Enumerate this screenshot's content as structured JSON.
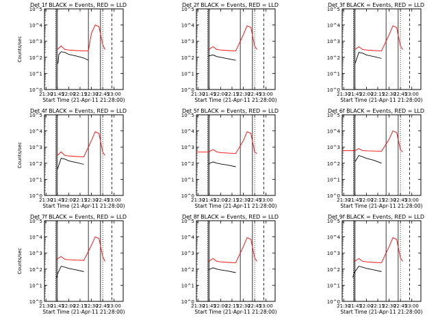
{
  "figure": {
    "subtitle": "Start Time (21-Apr-11 21:28:00)",
    "ylabel": "Counts/sec",
    "x_ticks": [
      "21:30",
      "21:45",
      "22:00",
      "22:15",
      "22:30",
      "22:45",
      "23:00"
    ],
    "y_ticks": [
      "10^0",
      "10^1",
      "10^2",
      "10^3",
      "10^4",
      "10^5"
    ],
    "colors": {
      "events": "#000000",
      "lld": "#ff0000",
      "axes": "#000000"
    },
    "vlines_minutes": {
      "dotted": [
        15,
        77
      ],
      "solid_early": [
        15.5,
        17
      ],
      "solid_late": [
        58,
        74
      ],
      "dashed": [
        89
      ]
    }
  },
  "chart_data": [
    {
      "type": "line",
      "title": "Det  1f BLACK = Events, RED = LLD",
      "xlabel": "Start Time (21-Apr-11 21:28:00)",
      "ylabel": "Counts/sec",
      "x_axis": "time",
      "y_scale": "log",
      "xlim": [
        "21:28",
        "23:12"
      ],
      "ylim": [
        1,
        100000
      ],
      "series": [
        {
          "name": "Events",
          "color": "#000000",
          "points": [
            [
              "21:45",
              40
            ],
            [
              "21:46",
              45
            ],
            [
              "21:47",
              150
            ],
            [
              "21:50",
              220
            ],
            [
              "21:55",
              200
            ],
            [
              "22:00",
              150
            ],
            [
              "22:10",
              120
            ],
            [
              "22:20",
              90
            ],
            [
              "22:26",
              65
            ]
          ]
        },
        {
          "name": "LLD",
          "color": "#ff0000",
          "points": [
            [
              "21:45",
              300
            ],
            [
              "21:50",
              500
            ],
            [
              "21:55",
              300
            ],
            [
              "22:00",
              280
            ],
            [
              "22:10",
              260
            ],
            [
              "22:20",
              250
            ],
            [
              "22:26",
              250
            ],
            [
              "22:30",
              3000
            ],
            [
              "22:35",
              10000
            ],
            [
              "22:40",
              8000
            ],
            [
              "22:45",
              600
            ],
            [
              "22:48",
              300
            ]
          ]
        }
      ]
    },
    {
      "type": "line",
      "title": "Det  2f BLACK = Events, RED = LLD",
      "xlabel": "Start Time (21-Apr-11 21:28:00)",
      "ylabel": "",
      "x_axis": "time",
      "y_scale": "log",
      "xlim": [
        "21:28",
        "23:12"
      ],
      "ylim": [
        1,
        100000
      ],
      "series": [
        {
          "name": "Events",
          "color": "#000000",
          "points": [
            [
              "21:44",
              120
            ],
            [
              "21:50",
              140
            ],
            [
              "21:55",
              110
            ],
            [
              "22:00",
              100
            ],
            [
              "22:10",
              80
            ],
            [
              "22:20",
              65
            ]
          ]
        },
        {
          "name": "LLD",
          "color": "#ff0000",
          "points": [
            [
              "21:44",
              300
            ],
            [
              "21:50",
              450
            ],
            [
              "21:55",
              300
            ],
            [
              "22:00",
              280
            ],
            [
              "22:10",
              260
            ],
            [
              "22:20",
              250
            ],
            [
              "22:30",
              2500
            ],
            [
              "22:35",
              9000
            ],
            [
              "22:40",
              7000
            ],
            [
              "22:45",
              500
            ],
            [
              "22:48",
              300
            ]
          ]
        }
      ]
    },
    {
      "type": "line",
      "title": "Det  3f BLACK = Events, RED = LLD",
      "xlabel": "Start Time (21-Apr-11 21:28:00)",
      "ylabel": "Counts/sec",
      "x_axis": "time",
      "y_scale": "log",
      "xlim": [
        "21:28",
        "23:12"
      ],
      "ylim": [
        1,
        100000
      ],
      "series": [
        {
          "name": "Events",
          "color": "#000000",
          "points": [
            [
              "21:45",
              40
            ],
            [
              "21:50",
              200
            ],
            [
              "21:55",
              180
            ],
            [
              "22:00",
              140
            ],
            [
              "22:10",
              110
            ],
            [
              "22:20",
              85
            ]
          ]
        },
        {
          "name": "LLD",
          "color": "#ff0000",
          "points": [
            [
              "21:45",
              300
            ],
            [
              "21:50",
              450
            ],
            [
              "21:55",
              300
            ],
            [
              "22:00",
              280
            ],
            [
              "22:10",
              260
            ],
            [
              "22:20",
              250
            ],
            [
              "22:30",
              2500
            ],
            [
              "22:35",
              9000
            ],
            [
              "22:40",
              7000
            ],
            [
              "22:45",
              500
            ],
            [
              "22:48",
              300
            ]
          ]
        }
      ]
    },
    {
      "type": "line",
      "title": "Det  4f BLACK = Events, RED = LLD",
      "xlabel": "Start Time (21-Apr-11 21:28:00)",
      "ylabel": "Counts/sec",
      "x_axis": "time",
      "y_scale": "log",
      "xlim": [
        "21:28",
        "23:12"
      ],
      "ylim": [
        1,
        100000
      ],
      "series": [
        {
          "name": "Events",
          "color": "#000000",
          "points": [
            [
              "21:45",
              40
            ],
            [
              "21:50",
              200
            ],
            [
              "21:55",
              180
            ],
            [
              "22:00",
              140
            ],
            [
              "22:10",
              110
            ],
            [
              "22:20",
              85
            ]
          ]
        },
        {
          "name": "LLD",
          "color": "#ff0000",
          "points": [
            [
              "21:45",
              300
            ],
            [
              "21:50",
              500
            ],
            [
              "21:55",
              300
            ],
            [
              "22:00",
              280
            ],
            [
              "22:10",
              260
            ],
            [
              "22:20",
              250
            ],
            [
              "22:30",
              2500
            ],
            [
              "22:35",
              9000
            ],
            [
              "22:40",
              7000
            ],
            [
              "22:45",
              500
            ],
            [
              "22:48",
              300
            ]
          ]
        }
      ]
    },
    {
      "type": "line",
      "title": "Det  5f BLACK = Events, RED = LLD",
      "xlabel": "Start Time (21-Apr-11 21:28:00)",
      "ylabel": "Counts/sec",
      "x_axis": "time",
      "y_scale": "log",
      "xlim": [
        "21:28",
        "23:12"
      ],
      "ylim": [
        1,
        100000
      ],
      "series": [
        {
          "name": "Events",
          "color": "#000000",
          "points": [
            [
              "21:44",
              90
            ],
            [
              "21:50",
              120
            ],
            [
              "21:55",
              100
            ],
            [
              "22:00",
              90
            ],
            [
              "22:10",
              75
            ],
            [
              "22:20",
              60
            ]
          ]
        },
        {
          "name": "LLD",
          "color": "#ff0000",
          "points": [
            [
              "21:28",
              500
            ],
            [
              "21:44",
              500
            ],
            [
              "21:50",
              700
            ],
            [
              "21:55",
              500
            ],
            [
              "22:00",
              450
            ],
            [
              "22:10",
              420
            ],
            [
              "22:20",
              400
            ],
            [
              "22:30",
              2500
            ],
            [
              "22:35",
              9000
            ],
            [
              "22:40",
              7000
            ],
            [
              "22:45",
              500
            ],
            [
              "22:48",
              400
            ]
          ]
        }
      ]
    },
    {
      "type": "line",
      "title": "Det  6f BLACK = Events, RED = LLD",
      "xlabel": "Start Time (21-Apr-11 21:28:00)",
      "ylabel": "Counts/sec",
      "x_axis": "time",
      "y_scale": "log",
      "xlim": [
        "21:28",
        "23:12"
      ],
      "ylim": [
        1,
        100000
      ],
      "series": [
        {
          "name": "Events",
          "color": "#000000",
          "points": [
            [
              "21:45",
              120
            ],
            [
              "21:50",
              300
            ],
            [
              "21:55",
              250
            ],
            [
              "22:00",
              200
            ],
            [
              "22:10",
              150
            ],
            [
              "22:20",
              100
            ]
          ]
        },
        {
          "name": "LLD",
          "color": "#ff0000",
          "points": [
            [
              "21:28",
              600
            ],
            [
              "21:45",
              600
            ],
            [
              "21:50",
              800
            ],
            [
              "21:55",
              600
            ],
            [
              "22:00",
              580
            ],
            [
              "22:10",
              560
            ],
            [
              "22:20",
              550
            ],
            [
              "22:30",
              3000
            ],
            [
              "22:35",
              10000
            ],
            [
              "22:40",
              8000
            ],
            [
              "22:45",
              700
            ],
            [
              "22:48",
              500
            ]
          ]
        }
      ]
    },
    {
      "type": "line",
      "title": "Det  7f BLACK = Events, RED = LLD",
      "xlabel": "Start Time (21-Apr-11 21:28:00)",
      "ylabel": "Counts/sec",
      "x_axis": "time",
      "y_scale": "log",
      "xlim": [
        "21:28",
        "23:12"
      ],
      "ylim": [
        1,
        100000
      ],
      "series": [
        {
          "name": "Events",
          "color": "#000000",
          "points": [
            [
              "21:44",
              30
            ],
            [
              "21:46",
              60
            ],
            [
              "21:50",
              150
            ],
            [
              "21:55",
              130
            ],
            [
              "22:00",
              110
            ],
            [
              "22:10",
              90
            ],
            [
              "22:20",
              70
            ]
          ]
        },
        {
          "name": "LLD",
          "color": "#ff0000",
          "points": [
            [
              "21:44",
              400
            ],
            [
              "21:50",
              600
            ],
            [
              "21:55",
              400
            ],
            [
              "22:00",
              380
            ],
            [
              "22:10",
              360
            ],
            [
              "22:20",
              350
            ],
            [
              "22:30",
              3000
            ],
            [
              "22:35",
              10000
            ],
            [
              "22:40",
              8000
            ],
            [
              "22:45",
              600
            ],
            [
              "22:48",
              300
            ]
          ]
        }
      ]
    },
    {
      "type": "line",
      "title": "Det  8f BLACK = Events, RED = LLD",
      "xlabel": "Start Time (21-Apr-11 21:28:00)",
      "ylabel": "Counts/sec",
      "x_axis": "time",
      "y_scale": "log",
      "xlim": [
        "21:28",
        "23:12"
      ],
      "ylim": [
        1,
        100000
      ],
      "series": [
        {
          "name": "Events",
          "color": "#000000",
          "points": [
            [
              "21:44",
              90
            ],
            [
              "21:50",
              120
            ],
            [
              "21:55",
              100
            ],
            [
              "22:00",
              90
            ],
            [
              "22:10",
              75
            ],
            [
              "22:20",
              60
            ]
          ]
        },
        {
          "name": "LLD",
          "color": "#ff0000",
          "points": [
            [
              "21:44",
              300
            ],
            [
              "21:50",
              450
            ],
            [
              "21:55",
              300
            ],
            [
              "22:00",
              280
            ],
            [
              "22:10",
              260
            ],
            [
              "22:20",
              250
            ],
            [
              "22:30",
              2500
            ],
            [
              "22:35",
              9000
            ],
            [
              "22:40",
              7000
            ],
            [
              "22:45",
              500
            ],
            [
              "22:48",
              300
            ]
          ]
        }
      ]
    },
    {
      "type": "line",
      "title": "Det  9f BLACK = Events, RED = LLD",
      "xlabel": "Start Time (21-Apr-11 21:28:00)",
      "ylabel": "Counts/sec",
      "x_axis": "time",
      "y_scale": "log",
      "xlim": [
        "21:28",
        "23:12"
      ],
      "ylim": [
        1,
        100000
      ],
      "series": [
        {
          "name": "Events",
          "color": "#000000",
          "points": [
            [
              "21:42",
              30
            ],
            [
              "21:44",
              60
            ],
            [
              "21:50",
              150
            ],
            [
              "21:55",
              130
            ],
            [
              "22:00",
              110
            ],
            [
              "22:10",
              90
            ],
            [
              "22:20",
              70
            ]
          ]
        },
        {
          "name": "LLD",
          "color": "#ff0000",
          "points": [
            [
              "21:44",
              300
            ],
            [
              "21:50",
              450
            ],
            [
              "21:55",
              300
            ],
            [
              "22:00",
              280
            ],
            [
              "22:10",
              260
            ],
            [
              "22:20",
              250
            ],
            [
              "22:30",
              2500
            ],
            [
              "22:35",
              9000
            ],
            [
              "22:40",
              7000
            ],
            [
              "22:45",
              500
            ],
            [
              "22:48",
              300
            ]
          ]
        }
      ]
    }
  ]
}
